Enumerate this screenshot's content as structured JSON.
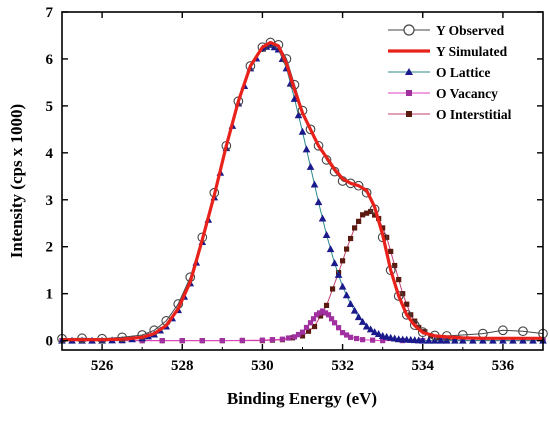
{
  "chart_data": {
    "type": "line",
    "xlabel": "Binding Energy (eV)",
    "ylabel": "Intensity (cps x 1000)",
    "xlim": [
      525,
      537
    ],
    "ylim": [
      -0.2,
      7
    ],
    "x_ticks": [
      526,
      528,
      530,
      532,
      534,
      536
    ],
    "y_ticks": [
      0,
      1,
      2,
      3,
      4,
      5,
      6,
      7
    ],
    "legend_position": "top-right",
    "series": [
      {
        "name": "Y Observed",
        "style": "line-open-circle",
        "color": "#444444",
        "x": [
          525.0,
          525.5,
          526.0,
          526.5,
          527.0,
          527.3,
          527.6,
          527.9,
          528.2,
          528.5,
          528.8,
          529.1,
          529.4,
          529.7,
          530.0,
          530.2,
          530.4,
          530.6,
          530.8,
          531.0,
          531.2,
          531.4,
          531.6,
          531.8,
          532.0,
          532.2,
          532.4,
          532.6,
          532.8,
          533.0,
          533.2,
          533.4,
          533.6,
          533.8,
          534.0,
          534.3,
          534.6,
          535.0,
          535.5,
          536.0,
          536.5,
          537.0
        ],
        "y": [
          0.04,
          0.05,
          0.04,
          0.07,
          0.12,
          0.22,
          0.42,
          0.78,
          1.35,
          2.2,
          3.15,
          4.15,
          5.1,
          5.85,
          6.25,
          6.35,
          6.3,
          6.0,
          5.45,
          4.9,
          4.5,
          4.15,
          3.85,
          3.6,
          3.4,
          3.35,
          3.3,
          3.15,
          2.8,
          2.2,
          1.5,
          0.95,
          0.55,
          0.33,
          0.18,
          0.11,
          0.1,
          0.12,
          0.15,
          0.22,
          0.2,
          0.15
        ]
      },
      {
        "name": "Y Simulated",
        "style": "line",
        "color": "#e8211a",
        "x": [
          525.0,
          525.5,
          526.0,
          526.5,
          527.0,
          527.3,
          527.6,
          527.9,
          528.2,
          528.5,
          528.8,
          529.1,
          529.4,
          529.7,
          530.0,
          530.2,
          530.4,
          530.6,
          530.8,
          531.0,
          531.2,
          531.4,
          531.6,
          531.8,
          532.0,
          532.2,
          532.4,
          532.6,
          532.8,
          533.0,
          533.2,
          533.4,
          533.6,
          533.8,
          534.0,
          534.3,
          534.6,
          535.0,
          535.5,
          536.0,
          536.5,
          537.0
        ],
        "y": [
          0.02,
          0.02,
          0.02,
          0.03,
          0.07,
          0.15,
          0.32,
          0.68,
          1.25,
          2.15,
          3.1,
          4.15,
          5.1,
          5.85,
          6.25,
          6.35,
          6.28,
          5.9,
          5.35,
          4.85,
          4.5,
          4.15,
          3.9,
          3.65,
          3.45,
          3.35,
          3.3,
          3.2,
          2.85,
          2.25,
          1.5,
          0.95,
          0.55,
          0.32,
          0.17,
          0.1,
          0.08,
          0.06,
          0.05,
          0.05,
          0.05,
          0.05
        ]
      },
      {
        "name": "O Lattice",
        "style": "line-triangle",
        "color": "#2a8a8a",
        "marker_color": "#1a1a8c",
        "x": [
          525.0,
          525.5,
          526.0,
          526.5,
          527.0,
          527.3,
          527.6,
          527.9,
          528.2,
          528.5,
          528.8,
          529.1,
          529.4,
          529.7,
          530.0,
          530.2,
          530.4,
          530.6,
          530.8,
          531.0,
          531.2,
          531.4,
          531.6,
          531.8,
          532.0,
          532.2,
          532.4,
          532.6,
          532.8,
          533.0,
          533.2,
          533.4,
          533.6,
          533.8,
          534.0,
          534.3,
          534.6,
          535.0,
          535.5,
          536.0,
          536.5,
          537.0
        ],
        "y": [
          0.0,
          0.0,
          0.0,
          0.01,
          0.05,
          0.13,
          0.3,
          0.65,
          1.22,
          2.1,
          3.05,
          4.1,
          5.05,
          5.8,
          6.22,
          6.3,
          6.2,
          5.8,
          5.15,
          4.45,
          3.7,
          2.95,
          2.25,
          1.65,
          1.15,
          0.78,
          0.5,
          0.3,
          0.18,
          0.1,
          0.06,
          0.03,
          0.02,
          0.01,
          0.0,
          0.0,
          0.0,
          0.0,
          0.0,
          0.0,
          0.0,
          0.0
        ]
      },
      {
        "name": "O Vacancy",
        "style": "line-square",
        "color": "#e040c0",
        "marker_color": "#a030a0",
        "x": [
          525.0,
          526.0,
          527.0,
          528.0,
          529.0,
          530.0,
          530.5,
          530.8,
          531.0,
          531.2,
          531.35,
          531.5,
          531.65,
          531.8,
          532.0,
          532.2,
          532.5,
          533.0,
          534.0,
          535.0,
          536.0,
          537.0
        ],
        "y": [
          0.0,
          0.0,
          0.0,
          0.0,
          0.0,
          0.01,
          0.03,
          0.08,
          0.18,
          0.38,
          0.55,
          0.63,
          0.55,
          0.38,
          0.17,
          0.07,
          0.02,
          0.0,
          0.0,
          0.0,
          0.0,
          0.0
        ]
      },
      {
        "name": "O Interstitial",
        "style": "line-square",
        "color": "#c04070",
        "marker_color": "#5a1a10",
        "x": [
          525.0,
          526.0,
          527.0,
          528.0,
          529.0,
          530.0,
          530.5,
          531.0,
          531.3,
          531.6,
          531.9,
          532.1,
          532.3,
          532.5,
          532.7,
          532.9,
          533.1,
          533.3,
          533.5,
          533.7,
          533.9,
          534.2,
          534.6,
          535.0,
          536.0,
          537.0
        ],
        "y": [
          0.0,
          0.0,
          0.0,
          0.0,
          0.0,
          0.0,
          0.02,
          0.1,
          0.3,
          0.75,
          1.45,
          1.95,
          2.4,
          2.68,
          2.75,
          2.6,
          2.2,
          1.6,
          1.0,
          0.55,
          0.28,
          0.1,
          0.03,
          0.01,
          0.0,
          0.0
        ]
      }
    ]
  }
}
